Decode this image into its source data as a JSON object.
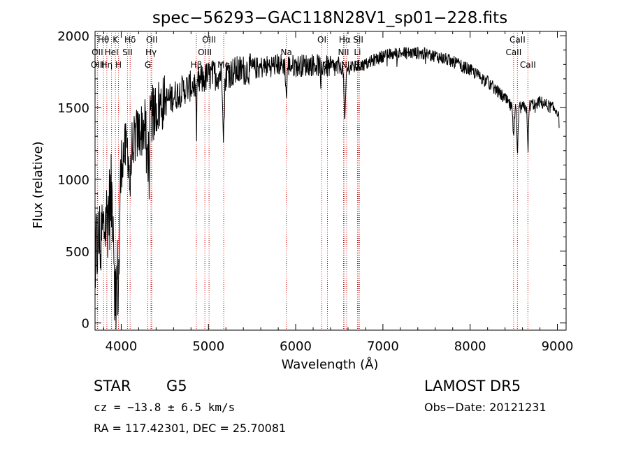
{
  "chart_data": {
    "type": "line",
    "title": "spec−56293−GAC118N28V1_sp01−228.fits",
    "xlabel": "Wavelength (Å)",
    "ylabel": "Flux (relative)",
    "xlim": [
      3700,
      9100
    ],
    "ylim": [
      -50,
      2030
    ],
    "xticks": [
      4000,
      5000,
      6000,
      7000,
      8000,
      9000
    ],
    "yticks": [
      0,
      500,
      1000,
      1500,
      2000
    ],
    "grid": false,
    "line_color": "#000000",
    "marker_color": "#cc0000",
    "spectral_lines": [
      {
        "label": "Hθ",
        "wavelength": 3797,
        "row": 0
      },
      {
        "label": "K",
        "wavelength": 3934,
        "row": 0
      },
      {
        "label": "Hδ",
        "wavelength": 4102,
        "row": 0
      },
      {
        "label": "OII",
        "wavelength": 4350,
        "row": 0
      },
      {
        "label": "OIII",
        "wavelength": 5007,
        "row": 0
      },
      {
        "label": "OI",
        "wavelength": 6300,
        "row": 0
      },
      {
        "label": "Hα",
        "wavelength": 6563,
        "row": 0
      },
      {
        "label": "SII",
        "wavelength": 6717,
        "row": 0
      },
      {
        "label": "CaII",
        "wavelength": 8542,
        "row": 0
      },
      {
        "label": "OII",
        "wavelength": 3727,
        "row": 1
      },
      {
        "label": "HeI",
        "wavelength": 3889,
        "row": 1
      },
      {
        "label": "SII",
        "wavelength": 4072,
        "row": 1
      },
      {
        "label": "Hγ",
        "wavelength": 4341,
        "row": 1
      },
      {
        "label": "OIII",
        "wavelength": 4959,
        "row": 1
      },
      {
        "label": "Na",
        "wavelength": 5893,
        "row": 1
      },
      {
        "label": "NII",
        "wavelength": 6548,
        "row": 1
      },
      {
        "label": "Li",
        "wavelength": 6708,
        "row": 1
      },
      {
        "label": "CaII",
        "wavelength": 8498,
        "row": 1
      },
      {
        "label": "OIII",
        "wavelength": 3730,
        "row": 2
      },
      {
        "label": "Hη",
        "wavelength": 3835,
        "row": 2
      },
      {
        "label": "H",
        "wavelength": 3969,
        "row": 2
      },
      {
        "label": "G",
        "wavelength": 4305,
        "row": 2
      },
      {
        "label": "Hβ",
        "wavelength": 4861,
        "row": 2
      },
      {
        "label": "Mg",
        "wavelength": 5175,
        "row": 2
      },
      {
        "label": "OI",
        "wavelength": 6364,
        "row": 2
      },
      {
        "label": "NII",
        "wavelength": 6584,
        "row": 2
      },
      {
        "label": "SII",
        "wavelength": 6731,
        "row": 2
      },
      {
        "label": "CaII",
        "wavelength": 8662,
        "row": 2
      }
    ],
    "continuum": {
      "x": [
        3700,
        3800,
        3900,
        4000,
        4100,
        4200,
        4300,
        4400,
        4500,
        4700,
        4900,
        5000,
        5200,
        5400,
        5600,
        5800,
        6000,
        6200,
        6400,
        6600,
        6800,
        7000,
        7200,
        7400,
        7600,
        7800,
        8000,
        8200,
        8400,
        8500,
        8600,
        8700,
        8800,
        8900,
        9000,
        9020
      ],
      "y": [
        500,
        650,
        900,
        1150,
        1250,
        1320,
        1400,
        1500,
        1540,
        1620,
        1680,
        1720,
        1740,
        1760,
        1780,
        1800,
        1790,
        1800,
        1780,
        1770,
        1800,
        1860,
        1880,
        1880,
        1860,
        1820,
        1760,
        1680,
        1560,
        1480,
        1500,
        1520,
        1540,
        1510,
        1480,
        1400
      ]
    },
    "absorption_features": [
      {
        "x": 3934,
        "depth": 800,
        "width": 20
      },
      {
        "x": 3969,
        "depth": 750,
        "width": 20
      },
      {
        "x": 4102,
        "depth": 300,
        "width": 15
      },
      {
        "x": 4305,
        "depth": 250,
        "width": 20
      },
      {
        "x": 4861,
        "depth": 250,
        "width": 10
      },
      {
        "x": 5175,
        "depth": 400,
        "width": 12
      },
      {
        "x": 5893,
        "depth": 220,
        "width": 10
      },
      {
        "x": 6563,
        "depth": 380,
        "width": 12
      },
      {
        "x": 8498,
        "depth": 220,
        "width": 10
      },
      {
        "x": 8542,
        "depth": 320,
        "width": 10
      },
      {
        "x": 8662,
        "depth": 300,
        "width": 10
      }
    ]
  },
  "info": {
    "class": "STAR",
    "subclass": "G5",
    "survey": "LAMOST DR5",
    "cz": "cz = −13.8 ± 6.5 km/s",
    "obs_date": "Obs−Date: 20121231",
    "coords": "RA = 117.42301, DEC =  25.70081"
  }
}
